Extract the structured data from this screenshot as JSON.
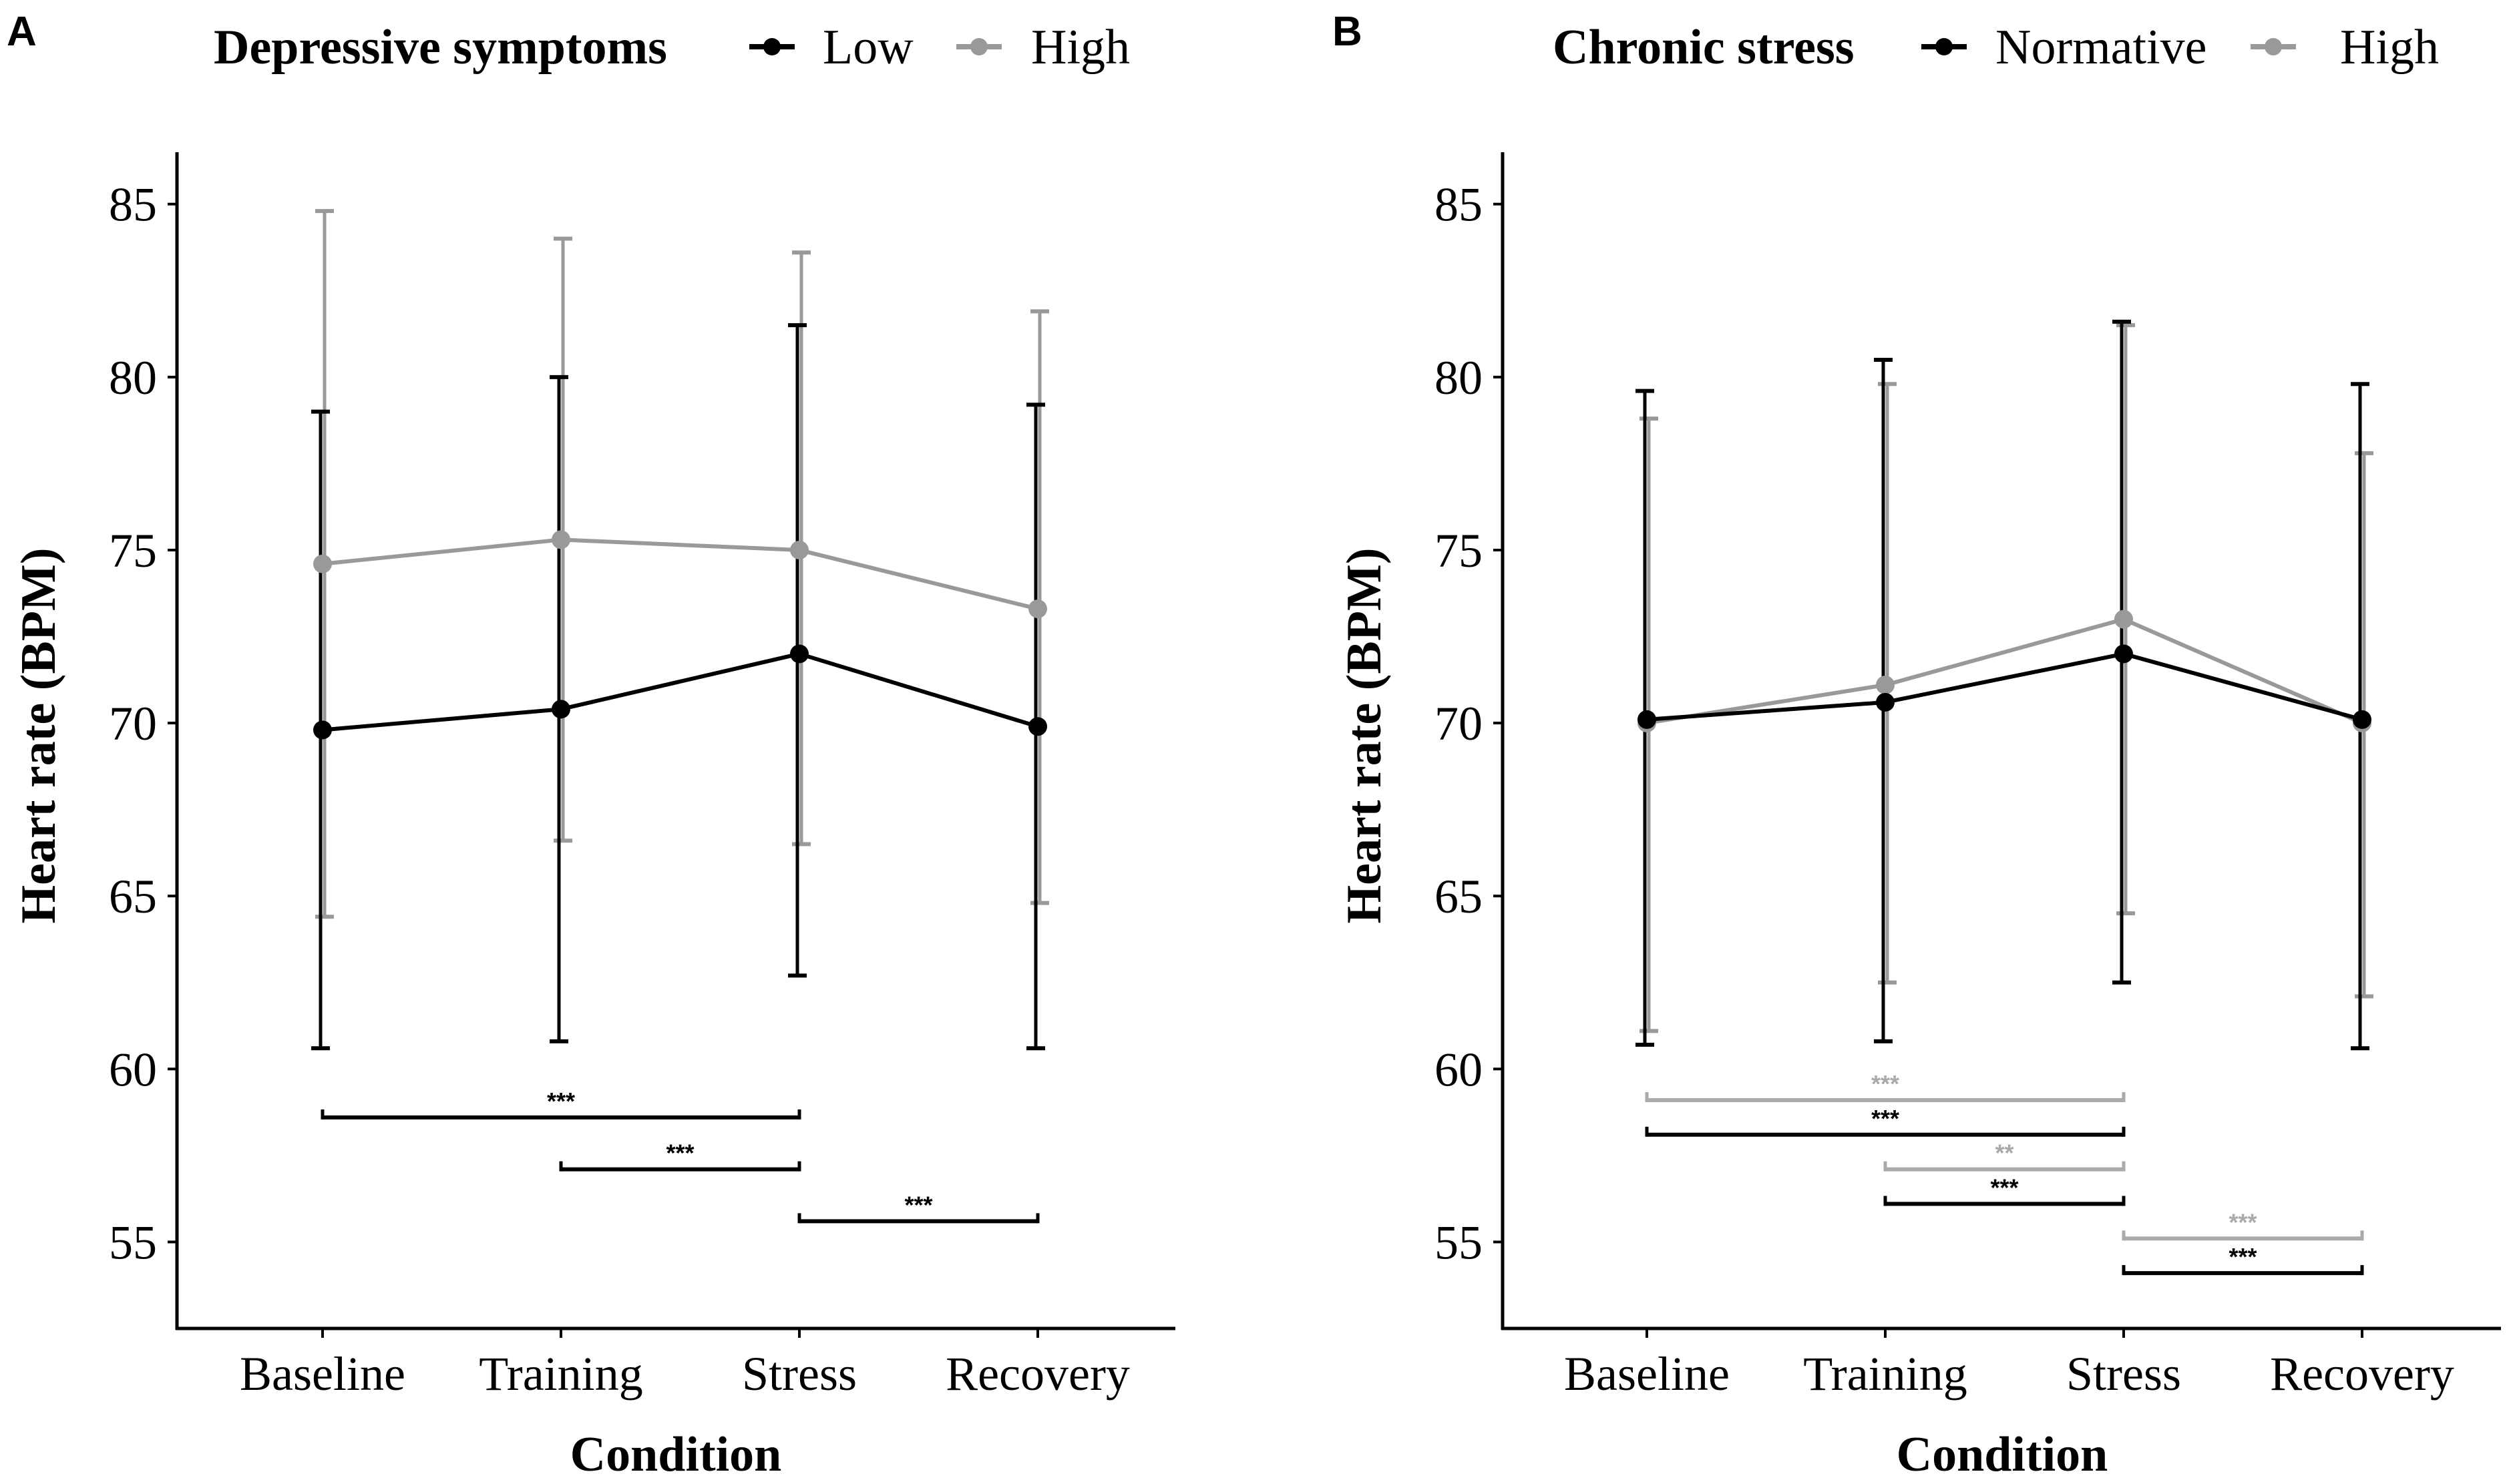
{
  "chart_data": [
    {
      "type": "line",
      "panel": "A",
      "legend_title": "Depressive symptoms",
      "xlabel": "Condition",
      "ylabel": "Heart rate (BPM)",
      "categories": [
        "Baseline",
        "Training",
        "Stress",
        "Recovery"
      ],
      "ylim": [
        52.5,
        86.5
      ],
      "yticks": [
        55,
        60,
        65,
        70,
        75,
        80,
        85
      ],
      "series": [
        {
          "name": "Low",
          "color": "#000000",
          "values": [
            69.8,
            70.4,
            72.0,
            69.9
          ],
          "err_low": [
            60.6,
            60.8,
            62.7,
            60.6
          ],
          "err_high": [
            79.0,
            80.0,
            81.5,
            79.2
          ]
        },
        {
          "name": "High",
          "color": "#999999",
          "values": [
            74.6,
            75.3,
            75.0,
            73.3
          ],
          "err_low": [
            64.4,
            66.6,
            66.5,
            64.8
          ],
          "err_high": [
            84.8,
            84.0,
            83.6,
            81.9
          ]
        }
      ],
      "significance": [
        {
          "from": "Baseline",
          "to": "Stress",
          "y": 58.6,
          "label": "***",
          "color": "#000000"
        },
        {
          "from": "Training",
          "to": "Stress",
          "y": 57.1,
          "label": "***",
          "color": "#000000"
        },
        {
          "from": "Stress",
          "to": "Recovery",
          "y": 55.6,
          "label": "***",
          "color": "#000000"
        }
      ]
    },
    {
      "type": "line",
      "panel": "B",
      "legend_title": "Chronic stress",
      "xlabel": "Condition",
      "ylabel": "Heart rate (BPM)",
      "categories": [
        "Baseline",
        "Training",
        "Stress",
        "Recovery"
      ],
      "ylim": [
        52.5,
        86.5
      ],
      "yticks": [
        55,
        60,
        65,
        70,
        75,
        80,
        85
      ],
      "series": [
        {
          "name": "Normative",
          "color": "#000000",
          "values": [
            70.1,
            70.6,
            72.0,
            70.1
          ],
          "err_low": [
            60.7,
            60.8,
            62.5,
            60.6
          ],
          "err_high": [
            79.6,
            80.5,
            81.6,
            79.8
          ]
        },
        {
          "name": "High",
          "color": "#999999",
          "values": [
            70.0,
            71.1,
            73.0,
            70.0
          ],
          "err_low": [
            61.1,
            62.5,
            64.5,
            62.1
          ],
          "err_high": [
            78.8,
            79.8,
            81.5,
            77.8
          ]
        }
      ],
      "significance": [
        {
          "from": "Baseline",
          "to": "Stress",
          "y": 59.1,
          "label": "***",
          "color": "#aaaaaa"
        },
        {
          "from": "Baseline",
          "to": "Stress",
          "y": 58.1,
          "label": "***",
          "color": "#000000"
        },
        {
          "from": "Training",
          "to": "Stress",
          "y": 57.1,
          "label": "**",
          "color": "#aaaaaa"
        },
        {
          "from": "Training",
          "to": "Stress",
          "y": 56.1,
          "label": "***",
          "color": "#000000"
        },
        {
          "from": "Stress",
          "to": "Recovery",
          "y": 55.1,
          "label": "***",
          "color": "#aaaaaa"
        },
        {
          "from": "Stress",
          "to": "Recovery",
          "y": 54.1,
          "label": "***",
          "color": "#000000"
        }
      ]
    }
  ]
}
